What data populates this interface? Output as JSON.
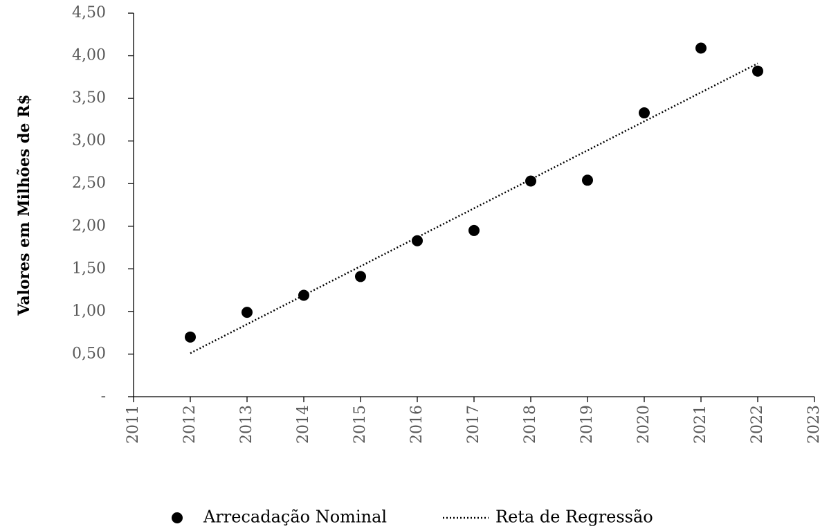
{
  "chart_data": {
    "type": "scatter",
    "ylabel": "Valores em Milhões de R$",
    "xlim": [
      2011,
      2023
    ],
    "xticks": [
      2011,
      2012,
      2013,
      2014,
      2015,
      2016,
      2017,
      2018,
      2019,
      2020,
      2021,
      2022,
      2023
    ],
    "ylim": [
      0,
      4.5
    ],
    "yticks": [
      {
        "value": 0,
        "label": "-"
      },
      {
        "value": 0.5,
        "label": "0,50"
      },
      {
        "value": 1,
        "label": "1,00"
      },
      {
        "value": 1.5,
        "label": "1,50"
      },
      {
        "value": 2,
        "label": "2,00"
      },
      {
        "value": 2.5,
        "label": "2,50"
      },
      {
        "value": 3,
        "label": "3,00"
      },
      {
        "value": 3.5,
        "label": "3,50"
      },
      {
        "value": 4,
        "label": "4,00"
      },
      {
        "value": 4.5,
        "label": "4,50"
      }
    ],
    "grid": false,
    "legend": "bottom",
    "series": [
      {
        "name": "Arrecadação Nominal",
        "type": "scatter",
        "color": "#000000",
        "x": [
          2012,
          2013,
          2014,
          2015,
          2016,
          2017,
          2018,
          2019,
          2020,
          2021,
          2022
        ],
        "values": [
          0.7,
          0.99,
          1.19,
          1.41,
          1.83,
          1.95,
          2.53,
          2.54,
          3.33,
          4.09,
          3.82
        ]
      },
      {
        "name": "Reta de Regressão",
        "type": "line",
        "color": "#000000",
        "x": [
          2012,
          2022
        ],
        "values": [
          0.51,
          3.91
        ]
      }
    ]
  }
}
